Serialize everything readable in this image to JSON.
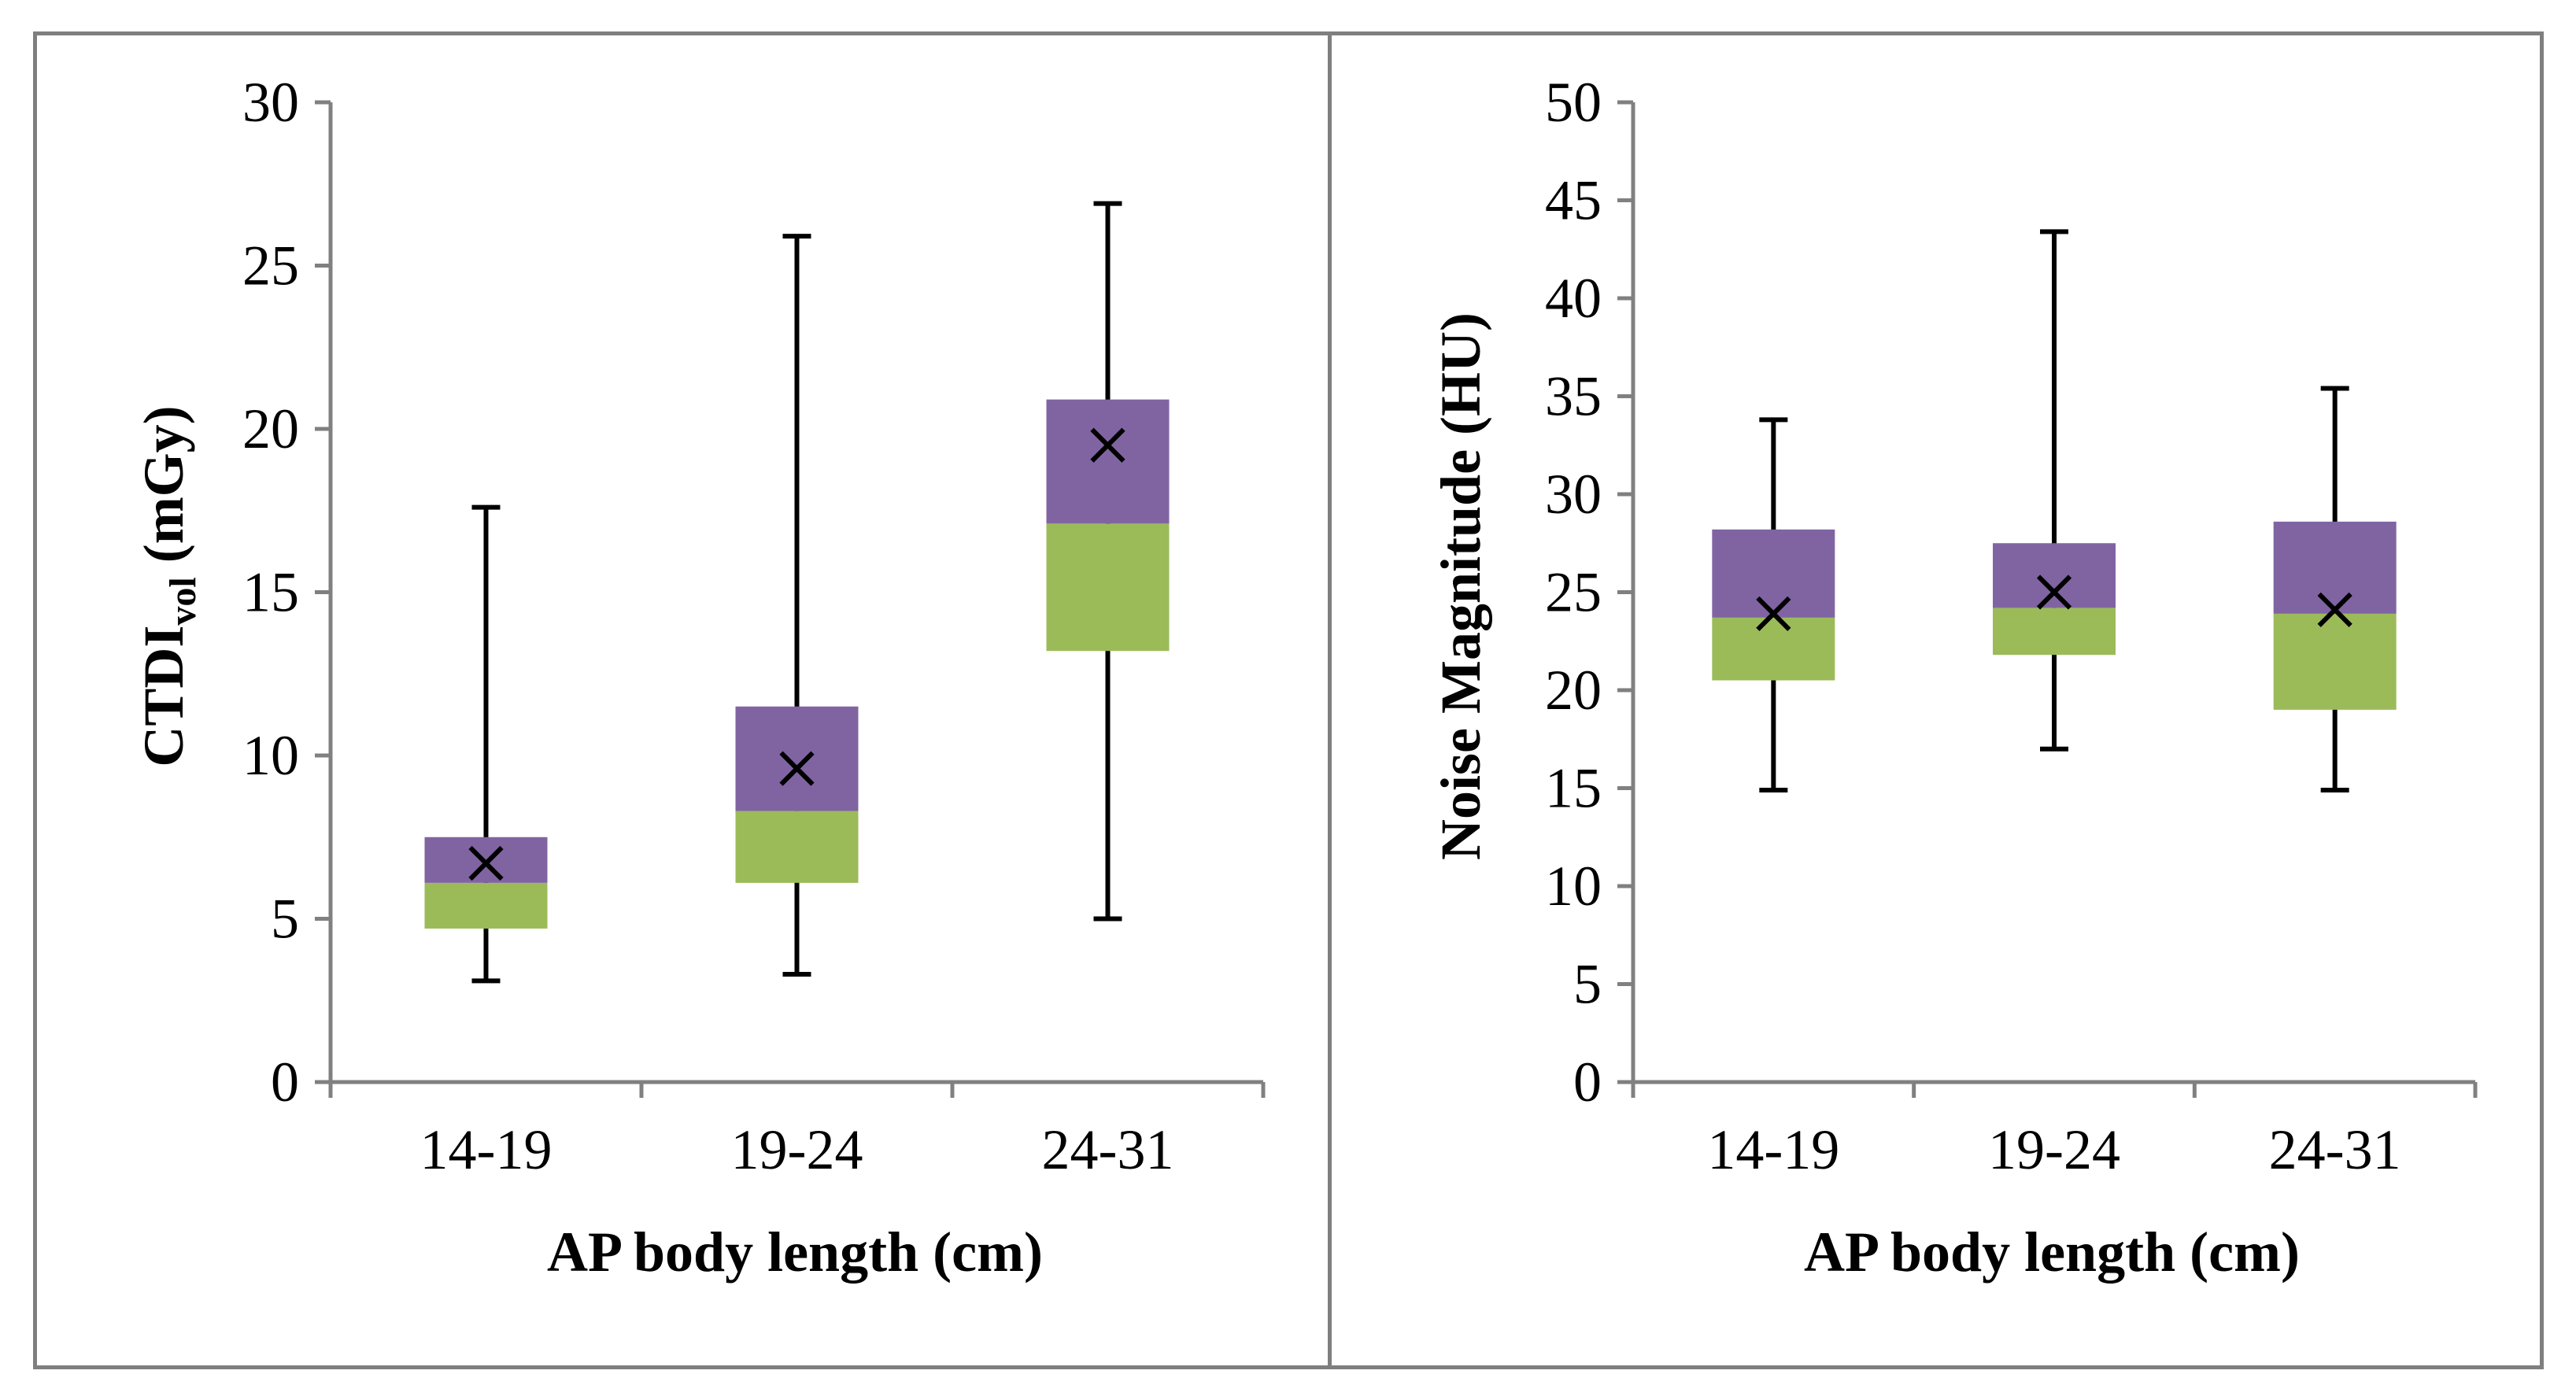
{
  "colors": {
    "upper_box": "#8064A2",
    "lower_box": "#9BBB59",
    "axis": "#808080",
    "whisker": "#000000",
    "panel_border": "#7F7F7F"
  },
  "chart_data": [
    {
      "type": "box",
      "xlabel": "AP body length (cm)",
      "ylabel": "CTDIvol (mGy)",
      "ylabel_main": "CTDI",
      "ylabel_sub": "vol",
      "ylabel_unit": " (mGy)",
      "ylim": [
        0,
        30
      ],
      "yticks": [
        "0",
        "5",
        "10",
        "15",
        "20",
        "25",
        "30"
      ],
      "categories": [
        "14-19",
        "19-24",
        "24-31"
      ],
      "series": [
        {
          "min": 3.1,
          "q1": 4.7,
          "median": 6.1,
          "q3": 7.5,
          "max": 17.6,
          "mean": 6.7
        },
        {
          "min": 3.3,
          "q1": 6.1,
          "median": 8.3,
          "q3": 11.5,
          "max": 25.9,
          "mean": 9.6
        },
        {
          "min": 5.0,
          "q1": 13.2,
          "median": 17.1,
          "q3": 20.9,
          "max": 26.9,
          "mean": 19.5
        }
      ],
      "mean_marker": "x",
      "grid": false,
      "legend": false
    },
    {
      "type": "box",
      "xlabel": "AP body length (cm)",
      "ylabel": "Noise Magnitude (HU)",
      "ylim": [
        0,
        50
      ],
      "yticks": [
        "0",
        "5",
        "10",
        "15",
        "20",
        "25",
        "30",
        "35",
        "40",
        "45",
        "50"
      ],
      "categories": [
        "14-19",
        "19-24",
        "24-31"
      ],
      "series": [
        {
          "min": 14.9,
          "q1": 20.5,
          "median": 23.7,
          "q3": 28.2,
          "max": 33.8,
          "mean": 23.9
        },
        {
          "min": 17.0,
          "q1": 21.8,
          "median": 24.2,
          "q3": 27.5,
          "max": 43.4,
          "mean": 25.0
        },
        {
          "min": 14.9,
          "q1": 19.0,
          "median": 23.9,
          "q3": 28.6,
          "max": 35.4,
          "mean": 24.1
        }
      ],
      "mean_marker": "x",
      "grid": false,
      "legend": false
    }
  ]
}
